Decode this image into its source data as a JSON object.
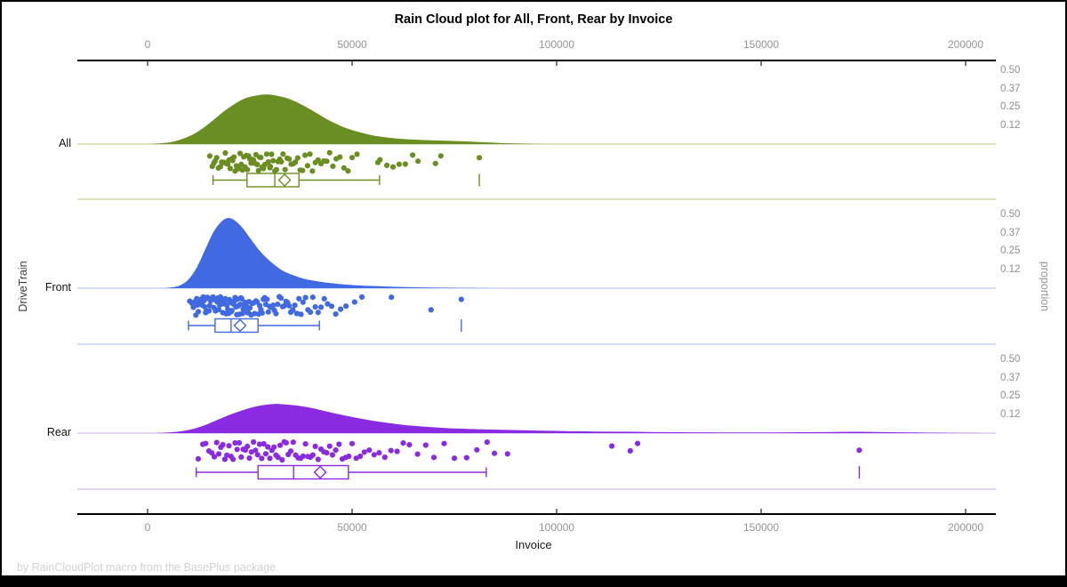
{
  "title": "Rain Cloud plot for All, Front, Rear by Invoice",
  "footer": "by RainCloudPlot macro from the BasePlus package",
  "axes": {
    "x_label": "Invoice",
    "y_left_label": "DriveTrain",
    "y_right_label": "proportion",
    "x_ticks": [
      0,
      50000,
      100000,
      150000,
      200000
    ],
    "x_range": [
      0,
      200000
    ],
    "proportion_ticks": [
      0.5,
      0.37,
      0.25,
      0.12
    ],
    "grid": false
  },
  "chart_data": {
    "type": "raincloud",
    "title": "Rain Cloud plot for All, Front, Rear by Invoice",
    "x_variable": "Invoice",
    "group_variable": "DriveTrain",
    "xlim": [
      0,
      200000
    ],
    "proportion_axis": [
      0,
      0.5
    ],
    "groups": [
      {
        "name": "All",
        "color": "#6B8E23",
        "light_color": "#C6D39C",
        "density": [
          [
            0,
            0
          ],
          [
            3000,
            0.005
          ],
          [
            6000,
            0.015
          ],
          [
            9000,
            0.04
          ],
          [
            12000,
            0.08
          ],
          [
            15000,
            0.14
          ],
          [
            18000,
            0.21
          ],
          [
            21000,
            0.27
          ],
          [
            24000,
            0.315
          ],
          [
            27000,
            0.335
          ],
          [
            29000,
            0.34
          ],
          [
            31000,
            0.335
          ],
          [
            34000,
            0.315
          ],
          [
            37000,
            0.28
          ],
          [
            40000,
            0.235
          ],
          [
            43000,
            0.185
          ],
          [
            46000,
            0.14
          ],
          [
            49000,
            0.105
          ],
          [
            52000,
            0.08
          ],
          [
            55000,
            0.06
          ],
          [
            58000,
            0.047
          ],
          [
            61000,
            0.038
          ],
          [
            64000,
            0.032
          ],
          [
            67000,
            0.028
          ],
          [
            70000,
            0.025
          ],
          [
            74000,
            0.022
          ],
          [
            78000,
            0.018
          ],
          [
            82000,
            0.013
          ],
          [
            86000,
            0.008
          ],
          [
            90000,
            0.004
          ],
          [
            94000,
            0.001
          ],
          [
            97000,
            0
          ]
        ],
        "stats": {
          "whisker_low": 16000,
          "q1": 24300,
          "median": 31100,
          "mean": 33500,
          "q3": 37000,
          "whisker_high": 56700,
          "outliers": [
            81100
          ]
        },
        "points": [
          15200,
          15800,
          16200,
          16500,
          16900,
          17300,
          17800,
          18100,
          18400,
          18700,
          19000,
          19300,
          19600,
          19900,
          20200,
          20500,
          20800,
          21100,
          21400,
          21700,
          22000,
          22300,
          22600,
          22900,
          23200,
          23500,
          23800,
          24100,
          24400,
          24700,
          25000,
          25300,
          25600,
          25900,
          26200,
          26500,
          26800,
          27100,
          27400,
          27700,
          28000,
          28300,
          28700,
          29100,
          29500,
          29900,
          30000,
          30300,
          30700,
          31100,
          31500,
          31900,
          32300,
          32700,
          33100,
          33600,
          34100,
          34600,
          35100,
          35600,
          36100,
          36700,
          37300,
          37900,
          38500,
          39100,
          39700,
          40300,
          41000,
          41700,
          42400,
          43100,
          43800,
          44500,
          45300,
          46100,
          47000,
          48000,
          49000,
          50000,
          51200,
          56300,
          56800,
          58500,
          60000,
          61500,
          63000,
          64800,
          66100,
          70400,
          71700,
          81100
        ]
      },
      {
        "name": "Front",
        "color": "#4169E1",
        "light_color": "#BBC9F0",
        "density": [
          [
            4000,
            0
          ],
          [
            6000,
            0.006
          ],
          [
            8000,
            0.02
          ],
          [
            10000,
            0.06
          ],
          [
            12000,
            0.14
          ],
          [
            14000,
            0.26
          ],
          [
            16000,
            0.38
          ],
          [
            18000,
            0.455
          ],
          [
            19500,
            0.48
          ],
          [
            21000,
            0.47
          ],
          [
            23000,
            0.42
          ],
          [
            25000,
            0.345
          ],
          [
            27000,
            0.27
          ],
          [
            29000,
            0.21
          ],
          [
            31000,
            0.16
          ],
          [
            33000,
            0.12
          ],
          [
            35000,
            0.095
          ],
          [
            37000,
            0.075
          ],
          [
            39000,
            0.06
          ],
          [
            42000,
            0.045
          ],
          [
            45000,
            0.034
          ],
          [
            48000,
            0.026
          ],
          [
            51000,
            0.02
          ],
          [
            55000,
            0.015
          ],
          [
            59000,
            0.011
          ],
          [
            63000,
            0.008
          ],
          [
            68000,
            0.005
          ],
          [
            73000,
            0.003
          ],
          [
            78000,
            0.0015
          ],
          [
            84000,
            0
          ]
        ],
        "stats": {
          "whisker_low": 10000,
          "q1": 16500,
          "median": 20400,
          "mean": 22600,
          "q3": 27000,
          "whisker_high": 42000,
          "outliers": [
            76700
          ]
        },
        "points": [
          10300,
          10800,
          11200,
          11500,
          11800,
          12000,
          12200,
          12400,
          12600,
          12800,
          13000,
          13200,
          13400,
          13600,
          13800,
          14000,
          14200,
          14400,
          14600,
          14800,
          15000,
          15200,
          15400,
          15600,
          15800,
          16000,
          16200,
          16400,
          16600,
          16800,
          17000,
          17200,
          17400,
          17600,
          17800,
          18000,
          18200,
          18400,
          18600,
          18800,
          19000,
          19200,
          19400,
          19600,
          19800,
          20000,
          20200,
          20400,
          20600,
          20800,
          21000,
          21200,
          21400,
          21600,
          21800,
          22000,
          22200,
          22400,
          22600,
          22800,
          23000,
          23200,
          23400,
          23600,
          23800,
          24000,
          24200,
          24400,
          24600,
          24800,
          25000,
          25300,
          25600,
          25900,
          26200,
          26500,
          26800,
          27100,
          27400,
          27700,
          28000,
          28300,
          28600,
          28900,
          29200,
          29500,
          29800,
          30100,
          30400,
          30700,
          31000,
          31400,
          31800,
          32200,
          32600,
          33000,
          33400,
          33800,
          34200,
          34600,
          35000,
          35500,
          36000,
          36500,
          37000,
          37500,
          38000,
          38600,
          39200,
          39800,
          40400,
          41000,
          41700,
          42400,
          43200,
          44000,
          45000,
          46000,
          47200,
          48500,
          50600,
          52400,
          59600,
          69300,
          76700
        ]
      },
      {
        "name": "Rear",
        "color": "#8A2BE2",
        "light_color": "#D6BBF2",
        "density": [
          [
            2000,
            0
          ],
          [
            5000,
            0.004
          ],
          [
            8000,
            0.012
          ],
          [
            11000,
            0.028
          ],
          [
            14000,
            0.055
          ],
          [
            17000,
            0.09
          ],
          [
            20000,
            0.125
          ],
          [
            23000,
            0.155
          ],
          [
            26000,
            0.18
          ],
          [
            29000,
            0.195
          ],
          [
            31000,
            0.2
          ],
          [
            33000,
            0.198
          ],
          [
            36000,
            0.19
          ],
          [
            39000,
            0.178
          ],
          [
            42000,
            0.16
          ],
          [
            45000,
            0.14
          ],
          [
            48000,
            0.122
          ],
          [
            51000,
            0.105
          ],
          [
            54000,
            0.09
          ],
          [
            57000,
            0.077
          ],
          [
            60000,
            0.065
          ],
          [
            63000,
            0.055
          ],
          [
            67000,
            0.046
          ],
          [
            71000,
            0.038
          ],
          [
            75000,
            0.032
          ],
          [
            79000,
            0.028
          ],
          [
            83000,
            0.025
          ],
          [
            88000,
            0.022
          ],
          [
            93000,
            0.019
          ],
          [
            98000,
            0.016
          ],
          [
            104000,
            0.013
          ],
          [
            110000,
            0.011
          ],
          [
            116000,
            0.01
          ],
          [
            122000,
            0.008
          ],
          [
            130000,
            0.006
          ],
          [
            140000,
            0.005
          ],
          [
            150000,
            0.005
          ],
          [
            160000,
            0.006
          ],
          [
            168000,
            0.008
          ],
          [
            174000,
            0.009
          ],
          [
            180000,
            0.007
          ],
          [
            188000,
            0.004
          ],
          [
            196000,
            0.002
          ],
          [
            206000,
            0
          ]
        ],
        "stats": {
          "whisker_low": 11900,
          "q1": 27000,
          "median": 35700,
          "mean": 42200,
          "q3": 49100,
          "whisker_high": 82800,
          "outliers": [
            174000
          ]
        },
        "points": [
          12400,
          13500,
          14200,
          15000,
          15700,
          16300,
          16900,
          17400,
          17900,
          18400,
          18900,
          19400,
          19900,
          20400,
          20900,
          21400,
          21900,
          22400,
          22900,
          23400,
          23900,
          24400,
          24900,
          25400,
          25900,
          26400,
          26900,
          27400,
          27900,
          28400,
          28900,
          29400,
          29900,
          30400,
          30900,
          31400,
          31900,
          32400,
          32900,
          33400,
          33900,
          34400,
          35000,
          35600,
          36200,
          36800,
          37400,
          38000,
          38600,
          39200,
          39800,
          40400,
          41000,
          41700,
          42400,
          43100,
          43800,
          44500,
          45200,
          46000,
          46800,
          47600,
          48400,
          49200,
          50000,
          51000,
          52000,
          53000,
          54200,
          55400,
          56600,
          58000,
          59500,
          61000,
          62500,
          64000,
          66000,
          68000,
          70000,
          72500,
          75000,
          78000,
          80500,
          83000,
          84800,
          88000,
          113500,
          118000,
          119800,
          174000
        ]
      }
    ]
  }
}
